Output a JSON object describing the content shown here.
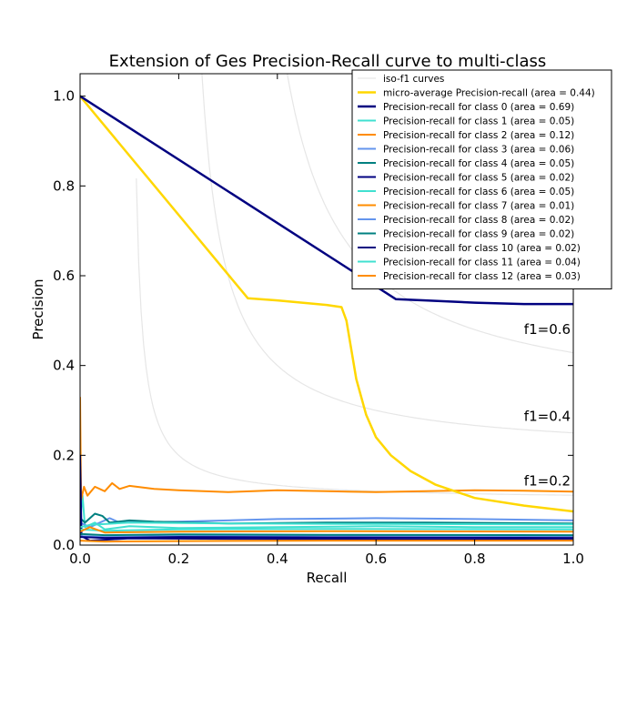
{
  "chart_data": {
    "type": "line",
    "title": "Extension of Ges Precision-Recall curve to multi-class",
    "xlabel": "Recall",
    "ylabel": "Precision",
    "xlim": [
      0.0,
      1.0
    ],
    "ylim": [
      0.0,
      1.05
    ],
    "x_ticks": [
      "0.0",
      "0.2",
      "0.4",
      "0.6",
      "0.8",
      "1.0"
    ],
    "y_ticks": [
      "0.0",
      "0.2",
      "0.4",
      "0.6",
      "0.8",
      "1.0"
    ],
    "grid": false,
    "legend_position": "top-right",
    "iso_f1": {
      "legend_label": "iso-f1 curves",
      "color": "#e6e6e6",
      "f_scores": [
        0.2,
        0.4,
        0.6,
        0.8
      ],
      "labels": [
        "f1=0.2",
        "f1=0.4",
        "f1=0.6"
      ]
    },
    "series": [
      {
        "name": "micro-average Precision-recall (area = 0.44)",
        "color": "#ffd700",
        "width": 2.5,
        "points": [
          [
            0,
            1.0
          ],
          [
            0.34,
            0.55
          ],
          [
            0.4,
            0.545
          ],
          [
            0.5,
            0.535
          ],
          [
            0.53,
            0.53
          ],
          [
            0.54,
            0.5
          ],
          [
            0.56,
            0.37
          ],
          [
            0.58,
            0.29
          ],
          [
            0.6,
            0.24
          ],
          [
            0.63,
            0.2
          ],
          [
            0.67,
            0.165
          ],
          [
            0.72,
            0.135
          ],
          [
            0.8,
            0.105
          ],
          [
            0.9,
            0.088
          ],
          [
            1.0,
            0.075
          ]
        ]
      },
      {
        "name": "Precision-recall for class 0 (area = 0.69)",
        "color": "#000080",
        "width": 2.5,
        "points": [
          [
            0,
            1.0
          ],
          [
            0.64,
            0.548
          ],
          [
            0.7,
            0.545
          ],
          [
            0.8,
            0.54
          ],
          [
            0.9,
            0.537
          ],
          [
            1.0,
            0.537
          ]
        ]
      },
      {
        "name": "Precision-recall for class 1 (area = 0.05)",
        "color": "#40e0d0",
        "width": 2,
        "points": [
          [
            0,
            0.05
          ],
          [
            0.005,
            0.11
          ],
          [
            0.01,
            0.04
          ],
          [
            0.03,
            0.05
          ],
          [
            0.05,
            0.035
          ],
          [
            0.1,
            0.042
          ],
          [
            0.2,
            0.038
          ],
          [
            0.4,
            0.04
          ],
          [
            0.6,
            0.042
          ],
          [
            0.8,
            0.04
          ],
          [
            1.0,
            0.04
          ]
        ]
      },
      {
        "name": "Precision-recall for class 2 (area = 0.12)",
        "color": "#ff8c00",
        "width": 2,
        "points": [
          [
            0,
            0.33
          ],
          [
            0.002,
            0.1
          ],
          [
            0.008,
            0.13
          ],
          [
            0.015,
            0.11
          ],
          [
            0.03,
            0.13
          ],
          [
            0.05,
            0.12
          ],
          [
            0.065,
            0.138
          ],
          [
            0.08,
            0.125
          ],
          [
            0.1,
            0.132
          ],
          [
            0.15,
            0.125
          ],
          [
            0.2,
            0.122
          ],
          [
            0.3,
            0.118
          ],
          [
            0.4,
            0.122
          ],
          [
            0.5,
            0.12
          ],
          [
            0.6,
            0.118
          ],
          [
            0.7,
            0.12
          ],
          [
            0.8,
            0.122
          ],
          [
            0.9,
            0.121
          ],
          [
            1.0,
            0.119
          ]
        ]
      },
      {
        "name": "Precision-recall for class 3 (area = 0.06)",
        "color": "#6495ed",
        "width": 2,
        "points": [
          [
            0,
            0.05
          ],
          [
            0.02,
            0.04
          ],
          [
            0.04,
            0.05
          ],
          [
            0.06,
            0.06
          ],
          [
            0.08,
            0.05
          ],
          [
            0.2,
            0.052
          ],
          [
            0.4,
            0.058
          ],
          [
            0.6,
            0.06
          ],
          [
            0.8,
            0.058
          ],
          [
            1.0,
            0.055
          ]
        ]
      },
      {
        "name": "Precision-recall for class 4 (area = 0.05)",
        "color": "#008080",
        "width": 2,
        "points": [
          [
            0,
            0.06
          ],
          [
            0.01,
            0.05
          ],
          [
            0.03,
            0.07
          ],
          [
            0.045,
            0.065
          ],
          [
            0.06,
            0.05
          ],
          [
            0.1,
            0.055
          ],
          [
            0.15,
            0.052
          ],
          [
            0.3,
            0.048
          ],
          [
            0.5,
            0.05
          ],
          [
            0.7,
            0.05
          ],
          [
            1.0,
            0.048
          ]
        ]
      },
      {
        "name": "Precision-recall for class 5 (area = 0.02)",
        "color": "#000080",
        "width": 2,
        "points": [
          [
            0,
            0.2
          ],
          [
            0.003,
            0.02
          ],
          [
            0.02,
            0.01
          ],
          [
            0.1,
            0.015
          ],
          [
            0.3,
            0.014
          ],
          [
            0.6,
            0.013
          ],
          [
            1.0,
            0.012
          ]
        ]
      },
      {
        "name": "Precision-recall for class 6 (area = 0.05)",
        "color": "#40e0d0",
        "width": 2,
        "points": [
          [
            0,
            0.04
          ],
          [
            0.02,
            0.045
          ],
          [
            0.1,
            0.05
          ],
          [
            0.3,
            0.048
          ],
          [
            0.6,
            0.047
          ],
          [
            1.0,
            0.046
          ]
        ]
      },
      {
        "name": "Precision-recall for class 7 (area = 0.01)",
        "color": "#ff8c00",
        "width": 2,
        "points": [
          [
            0,
            0.01
          ],
          [
            0.05,
            0.008
          ],
          [
            0.2,
            0.009
          ],
          [
            0.5,
            0.01
          ],
          [
            1.0,
            0.01
          ]
        ]
      },
      {
        "name": "Precision-recall for class 8 (area = 0.02)",
        "color": "#6495ed",
        "width": 2,
        "points": [
          [
            0,
            0.02
          ],
          [
            0.05,
            0.018
          ],
          [
            0.2,
            0.02
          ],
          [
            0.5,
            0.021
          ],
          [
            1.0,
            0.02
          ]
        ]
      },
      {
        "name": "Precision-recall for class 9 (area = 0.02)",
        "color": "#008080",
        "width": 2,
        "points": [
          [
            0,
            0.025
          ],
          [
            0.05,
            0.022
          ],
          [
            0.2,
            0.024
          ],
          [
            0.5,
            0.023
          ],
          [
            1.0,
            0.022
          ]
        ]
      },
      {
        "name": "Precision-recall for class 10 (area = 0.02)",
        "color": "#000080",
        "width": 2,
        "points": [
          [
            0,
            0.018
          ],
          [
            0.05,
            0.016
          ],
          [
            0.2,
            0.018
          ],
          [
            0.5,
            0.017
          ],
          [
            1.0,
            0.016
          ]
        ]
      },
      {
        "name": "Precision-recall for class 11 (area = 0.04)",
        "color": "#40e0d0",
        "width": 2,
        "points": [
          [
            0,
            0.035
          ],
          [
            0.05,
            0.032
          ],
          [
            0.2,
            0.035
          ],
          [
            0.5,
            0.036
          ],
          [
            1.0,
            0.035
          ]
        ]
      },
      {
        "name": "Precision-recall for class 12 (area = 0.03)",
        "color": "#ff8c00",
        "width": 2,
        "points": [
          [
            0,
            0.03
          ],
          [
            0.02,
            0.04
          ],
          [
            0.05,
            0.028
          ],
          [
            0.2,
            0.03
          ],
          [
            0.5,
            0.031
          ],
          [
            1.0,
            0.03
          ]
        ]
      }
    ]
  }
}
